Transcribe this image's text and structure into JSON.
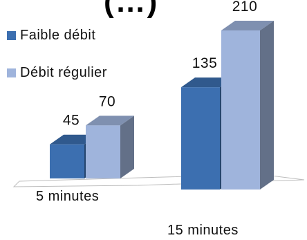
{
  "chart_data": {
    "type": "bar",
    "title": "(…)",
    "categories": [
      "5 minutes",
      "15 minutes"
    ],
    "series": [
      {
        "name": "Faible débit",
        "values": [
          45,
          135
        ],
        "color": "#3c6fb0"
      },
      {
        "name": "Débit régulier",
        "values": [
          70,
          210
        ],
        "color": "#9fb4dc"
      }
    ],
    "ylim": [
      0,
      210
    ],
    "grid": false,
    "legend_position": "top-left",
    "style": "3d-column"
  }
}
